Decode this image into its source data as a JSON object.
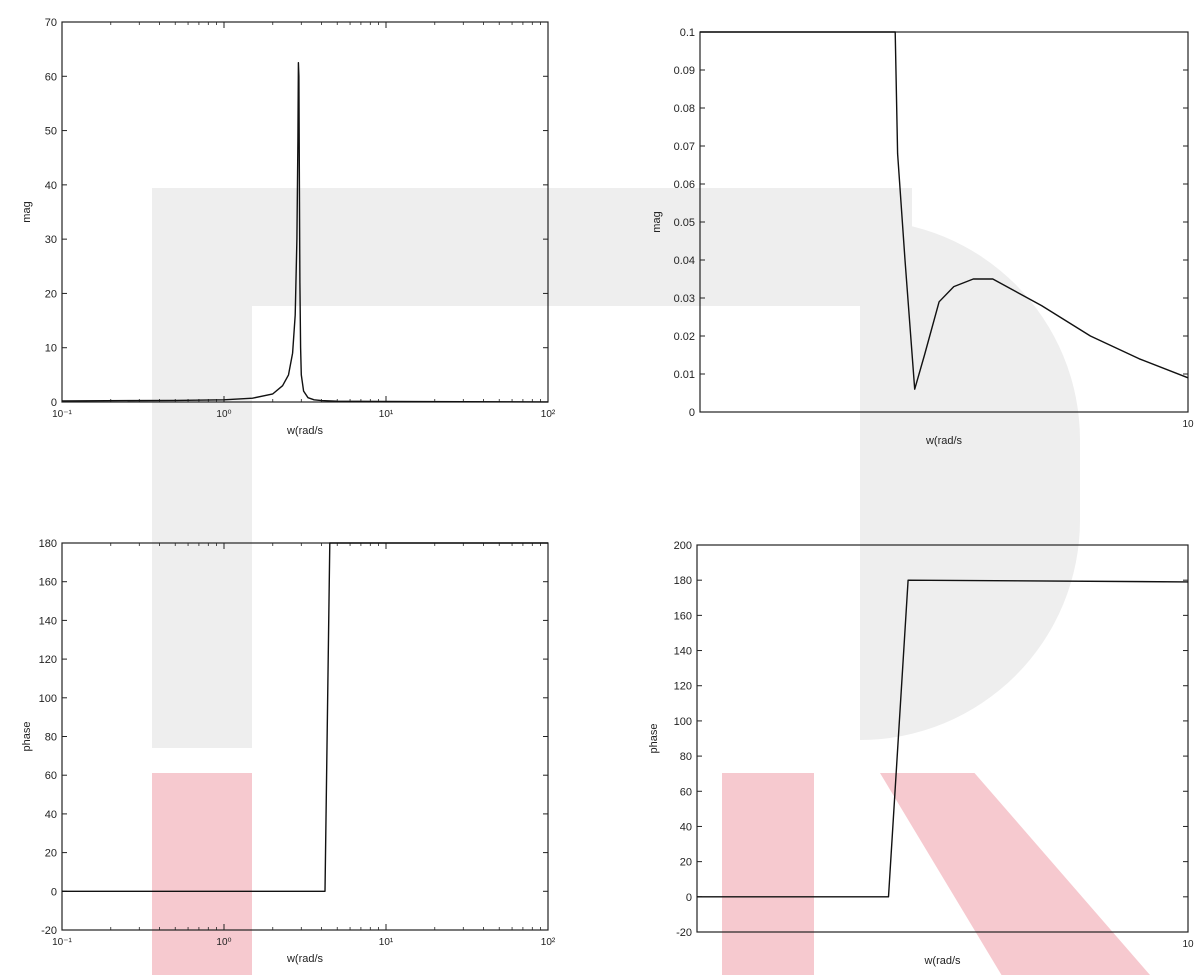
{
  "colors": {
    "line": "#111111",
    "axis": "#222222",
    "watermark_grey": "#eeeeee",
    "watermark_pink": "#f6c9cf"
  },
  "chart_data": [
    {
      "type": "line",
      "xscale": "log",
      "xlim": [
        0.1,
        100
      ],
      "ylim": [
        0,
        70
      ],
      "xticks": [
        0.1,
        1,
        10,
        100
      ],
      "xtick_labels": [
        "10⁻¹",
        "10⁰",
        "10¹",
        "10²"
      ],
      "yticks": [
        0,
        10,
        20,
        30,
        40,
        50,
        60,
        70
      ],
      "ytick_labels": [
        "0",
        "10",
        "20",
        "30",
        "40",
        "50",
        "60",
        "70"
      ],
      "xlabel": "w(rad/s",
      "ylabel": "mag",
      "grid": false,
      "series": [
        {
          "x": [
            0.1,
            0.5,
            1.0,
            1.5,
            2.0,
            2.3,
            2.5,
            2.65,
            2.75,
            2.82,
            2.86,
            2.88,
            2.9,
            2.92,
            2.94,
            2.97,
            3.0,
            3.1,
            3.3,
            3.6,
            4.0,
            5,
            10,
            30,
            100
          ],
          "y": [
            0.2,
            0.3,
            0.4,
            0.7,
            1.5,
            3.0,
            5.0,
            9.0,
            16.0,
            30.0,
            48.0,
            62.5,
            60.0,
            40.0,
            22.0,
            10.0,
            5.0,
            2.0,
            0.8,
            0.4,
            0.25,
            0.15,
            0.1,
            0.05,
            0.02
          ]
        }
      ]
    },
    {
      "type": "line",
      "xscale": "linear",
      "xlim": [
        0,
        10
      ],
      "ylim": [
        0,
        0.1
      ],
      "xticks": [
        10
      ],
      "xtick_labels": [
        "10"
      ],
      "yticks": [
        0,
        0.01,
        0.02,
        0.03,
        0.04,
        0.05,
        0.06,
        0.07,
        0.08,
        0.09,
        0.1
      ],
      "ytick_labels": [
        "0",
        "0.01",
        "0.02",
        "0.03",
        "0.04",
        "0.05",
        "0.06",
        "0.07",
        "0.08",
        "0.09",
        "0.1"
      ],
      "xlabel": "w(rad/s",
      "ylabel": "mag",
      "grid": false,
      "series": [
        {
          "x": [
            0,
            4.0,
            4.05,
            4.2,
            4.4,
            4.6,
            4.9,
            5.2,
            5.6,
            6.0,
            7.0,
            8.0,
            9.0,
            10.0
          ],
          "y": [
            0.1,
            0.1,
            0.068,
            0.04,
            0.006,
            0.015,
            0.029,
            0.033,
            0.035,
            0.035,
            0.028,
            0.02,
            0.014,
            0.009
          ]
        }
      ]
    },
    {
      "type": "line",
      "xscale": "log",
      "xlim": [
        0.1,
        100
      ],
      "ylim": [
        -20,
        180
      ],
      "xticks": [
        0.1,
        1,
        10,
        100
      ],
      "xtick_labels": [
        "10⁻¹",
        "10⁰",
        "10¹",
        "10²"
      ],
      "yticks": [
        -20,
        0,
        20,
        40,
        60,
        80,
        100,
        120,
        140,
        160,
        180
      ],
      "ytick_labels": [
        "-20",
        "0",
        "20",
        "40",
        "60",
        "80",
        "100",
        "120",
        "140",
        "160",
        "180"
      ],
      "xlabel": "w(rad/s",
      "ylabel": "phase",
      "grid": false,
      "series": [
        {
          "x": [
            0.1,
            4.2,
            4.5,
            4.6,
            100
          ],
          "y": [
            0,
            0,
            180,
            180,
            180
          ]
        }
      ]
    },
    {
      "type": "line",
      "xscale": "linear",
      "xlim": [
        0,
        10
      ],
      "ylim": [
        -20,
        200
      ],
      "xticks": [
        10
      ],
      "xtick_labels": [
        "10"
      ],
      "yticks": [
        -20,
        0,
        20,
        40,
        60,
        80,
        100,
        120,
        140,
        160,
        180,
        200
      ],
      "ytick_labels": [
        "-20",
        "0",
        "20",
        "40",
        "60",
        "80",
        "100",
        "120",
        "140",
        "160",
        "180",
        "200"
      ],
      "xlabel": "w(rad/s",
      "ylabel": "phase",
      "grid": false,
      "series": [
        {
          "x": [
            0,
            3.9,
            4.3,
            10
          ],
          "y": [
            0,
            0,
            180,
            179
          ]
        }
      ]
    }
  ]
}
